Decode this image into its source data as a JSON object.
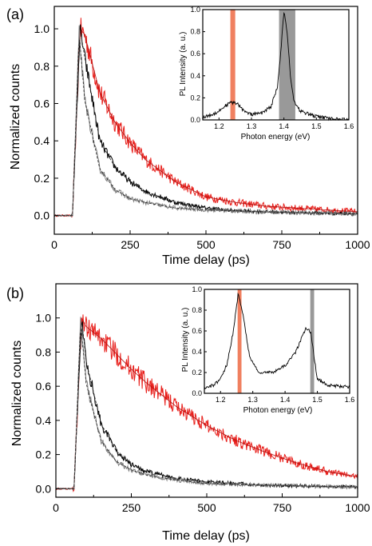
{
  "chart_data": [
    {
      "panel_label": "(a)",
      "type": "line",
      "xlabel": "Time delay (ps)",
      "ylabel": "Normalized counts",
      "xlim": [
        0,
        1000
      ],
      "ylim": [
        -0.1,
        1.12
      ],
      "xticks": [
        0,
        250,
        500,
        750,
        1000
      ],
      "yticks": [
        0.0,
        0.2,
        0.4,
        0.6,
        0.8,
        1.0
      ],
      "series": [
        {
          "color": "#e8201c",
          "values": [
            [
              0,
              0.0
            ],
            [
              60,
              0.0
            ],
            [
              85,
              1.0
            ],
            [
              100,
              0.97
            ],
            [
              150,
              0.66
            ],
            [
              200,
              0.5
            ],
            [
              250,
              0.39
            ],
            [
              300,
              0.3
            ],
            [
              400,
              0.18
            ],
            [
              500,
              0.1
            ],
            [
              600,
              0.07
            ],
            [
              700,
              0.05
            ],
            [
              800,
              0.04
            ],
            [
              900,
              0.03
            ],
            [
              1000,
              0.02
            ]
          ]
        },
        {
          "color": "#000000",
          "values": [
            [
              0,
              0.0
            ],
            [
              60,
              0.0
            ],
            [
              85,
              1.0
            ],
            [
              100,
              0.85
            ],
            [
              150,
              0.4
            ],
            [
              200,
              0.26
            ],
            [
              250,
              0.18
            ],
            [
              300,
              0.13
            ],
            [
              400,
              0.07
            ],
            [
              500,
              0.04
            ],
            [
              600,
              0.025
            ],
            [
              700,
              0.02
            ],
            [
              800,
              0.015
            ],
            [
              1000,
              0.01
            ]
          ]
        },
        {
          "color": "#7f7f7f",
          "values": [
            [
              0,
              0.0
            ],
            [
              60,
              0.0
            ],
            [
              82,
              0.98
            ],
            [
              100,
              0.62
            ],
            [
              150,
              0.25
            ],
            [
              200,
              0.14
            ],
            [
              250,
              0.09
            ],
            [
              300,
              0.07
            ],
            [
              400,
              0.04
            ],
            [
              500,
              0.03
            ],
            [
              700,
              0.02
            ],
            [
              1000,
              0.01
            ]
          ]
        }
      ],
      "inset": {
        "xlabel": "Photon energy (eV)",
        "ylabel": "PL Intensity (a. u.)",
        "xlim": [
          1.15,
          1.6
        ],
        "ylim": [
          0,
          1.0
        ],
        "xticks": [
          1.2,
          1.3,
          1.4,
          1.5,
          1.6
        ],
        "yticks": [
          0.0,
          0.2,
          0.4,
          0.6,
          0.8,
          1.0
        ],
        "highlight_bands": [
          {
            "color": "#f08060",
            "from": 1.235,
            "to": 1.25
          },
          {
            "color": "#999999",
            "from": 1.385,
            "to": 1.435
          }
        ],
        "spectrum": [
          [
            1.15,
            0.02
          ],
          [
            1.18,
            0.05
          ],
          [
            1.2,
            0.08
          ],
          [
            1.22,
            0.13
          ],
          [
            1.24,
            0.16
          ],
          [
            1.26,
            0.14
          ],
          [
            1.28,
            0.07
          ],
          [
            1.3,
            0.05
          ],
          [
            1.33,
            0.06
          ],
          [
            1.36,
            0.12
          ],
          [
            1.38,
            0.3
          ],
          [
            1.39,
            0.6
          ],
          [
            1.4,
            0.98
          ],
          [
            1.41,
            0.8
          ],
          [
            1.42,
            0.4
          ],
          [
            1.43,
            0.18
          ],
          [
            1.45,
            0.08
          ],
          [
            1.5,
            0.03
          ],
          [
            1.55,
            0.01
          ],
          [
            1.6,
            0.0
          ]
        ]
      }
    },
    {
      "panel_label": "(b)",
      "type": "line",
      "xlabel": "Time delay (ps)",
      "ylabel": "Normalized counts",
      "xlim": [
        0,
        1000
      ],
      "ylim": [
        -0.05,
        1.2
      ],
      "xticks": [
        0,
        250,
        500,
        750,
        1000
      ],
      "yticks": [
        0.0,
        0.2,
        0.4,
        0.6,
        0.8,
        1.0
      ],
      "series": [
        {
          "color": "#e8201c",
          "values": [
            [
              0,
              0.0
            ],
            [
              60,
              0.0
            ],
            [
              85,
              1.0
            ],
            [
              100,
              0.95
            ],
            [
              150,
              0.88
            ],
            [
              200,
              0.79
            ],
            [
              250,
              0.7
            ],
            [
              300,
              0.62
            ],
            [
              400,
              0.48
            ],
            [
              500,
              0.37
            ],
            [
              600,
              0.28
            ],
            [
              700,
              0.21
            ],
            [
              800,
              0.15
            ],
            [
              900,
              0.1
            ],
            [
              1000,
              0.07
            ]
          ]
        },
        {
          "color": "#000000",
          "values": [
            [
              0,
              0.0
            ],
            [
              60,
              0.0
            ],
            [
              85,
              1.0
            ],
            [
              100,
              0.75
            ],
            [
              150,
              0.38
            ],
            [
              200,
              0.22
            ],
            [
              250,
              0.14
            ],
            [
              300,
              0.1
            ],
            [
              400,
              0.06
            ],
            [
              500,
              0.04
            ],
            [
              700,
              0.02
            ],
            [
              1000,
              0.01
            ]
          ]
        },
        {
          "color": "#7f7f7f",
          "values": [
            [
              0,
              0.0
            ],
            [
              60,
              0.0
            ],
            [
              82,
              0.98
            ],
            [
              100,
              0.62
            ],
            [
              150,
              0.28
            ],
            [
              200,
              0.16
            ],
            [
              250,
              0.11
            ],
            [
              300,
              0.08
            ],
            [
              400,
              0.05
            ],
            [
              500,
              0.03
            ],
            [
              700,
              0.02
            ],
            [
              1000,
              0.01
            ]
          ]
        }
      ],
      "inset": {
        "xlabel": "Photon energy (eV)",
        "ylabel": "PL Intensity (a. u.)",
        "xlim": [
          1.15,
          1.6
        ],
        "ylim": [
          0,
          1.0
        ],
        "xticks": [
          1.2,
          1.3,
          1.4,
          1.5,
          1.6
        ],
        "yticks": [
          0.0,
          0.2,
          0.4,
          0.6,
          0.8,
          1.0
        ],
        "highlight_bands": [
          {
            "color": "#f08060",
            "from": 1.253,
            "to": 1.265
          },
          {
            "color": "#999999",
            "from": 1.478,
            "to": 1.49
          }
        ],
        "spectrum": [
          [
            1.15,
            0.05
          ],
          [
            1.18,
            0.08
          ],
          [
            1.2,
            0.14
          ],
          [
            1.22,
            0.28
          ],
          [
            1.24,
            0.6
          ],
          [
            1.255,
            0.97
          ],
          [
            1.27,
            0.75
          ],
          [
            1.29,
            0.35
          ],
          [
            1.32,
            0.2
          ],
          [
            1.36,
            0.2
          ],
          [
            1.4,
            0.27
          ],
          [
            1.43,
            0.38
          ],
          [
            1.45,
            0.52
          ],
          [
            1.465,
            0.63
          ],
          [
            1.475,
            0.6
          ],
          [
            1.48,
            0.58
          ],
          [
            1.49,
            0.35
          ],
          [
            1.5,
            0.14
          ],
          [
            1.53,
            0.08
          ],
          [
            1.56,
            0.07
          ],
          [
            1.6,
            0.06
          ]
        ]
      }
    }
  ]
}
